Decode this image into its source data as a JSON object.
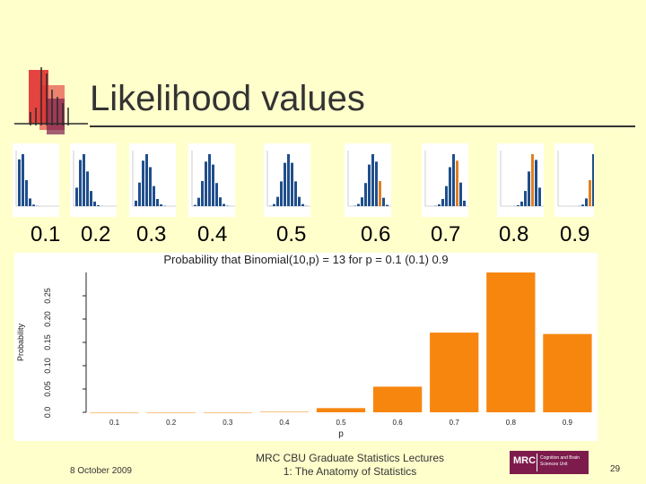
{
  "slide": {
    "title": "Likelihood values"
  },
  "p_labels": [
    "0.1",
    "0.2",
    "0.3",
    "0.4",
    "0.5",
    "0.6",
    "0.7",
    "0.8",
    "0.9"
  ],
  "footer": {
    "lecture_title": "MRC CBU Graduate Statistics Lectures",
    "lecture_subtitle": "1: The Anatomy of Statistics",
    "date": "8 October 2009",
    "page_number": "29",
    "logo_text": "MRC",
    "logo_subtext": "Cognition and Brain Sciences Unit"
  },
  "colors": {
    "background": "#FFFFCC",
    "bar_main": "#F7860F",
    "bar_thumb": "#1F4E8C",
    "bar_highlight": "#E08020",
    "logo_red": "#E03030",
    "logo_purple": "#7d1c4c"
  },
  "chart_data": {
    "type": "bar",
    "title": "Probability that Binomial(10,p) = 13 for p = 0.1 (0.1) 0.9",
    "xlabel": "p",
    "ylabel": "Probability",
    "categories": [
      "0.1",
      "0.2",
      "0.3",
      "0.4",
      "0.5",
      "0.6",
      "0.7",
      "0.8",
      "0.9"
    ],
    "values": [
      0.0,
      0.0,
      0.0,
      0.001,
      0.009,
      0.055,
      0.171,
      0.3,
      0.168
    ],
    "yticks": [
      "0.0",
      "0.05",
      "0.10",
      "0.15",
      "0.20",
      "0.25"
    ],
    "ylim": [
      0,
      0.3
    ]
  }
}
